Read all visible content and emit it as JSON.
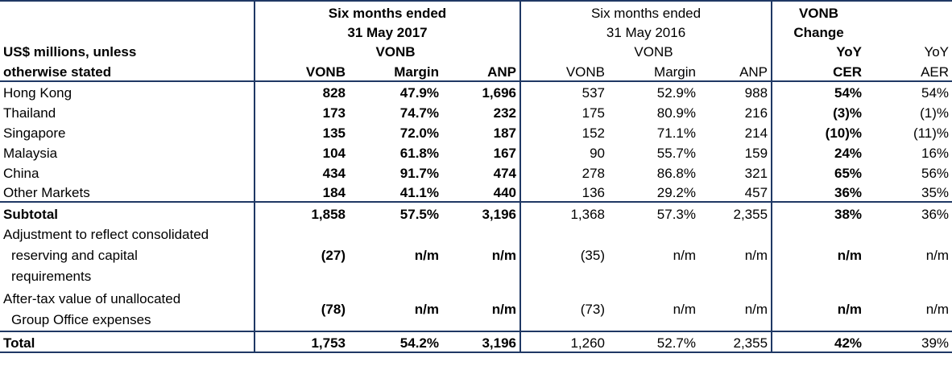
{
  "header": {
    "unit_label_line1": "US$ millions, unless",
    "unit_label_line2": "otherwise stated",
    "group2017_line1": "Six months ended",
    "group2017_line2": "31 May 2017",
    "group2017_vonb_top": "VONB",
    "group2016_line1": "Six months ended",
    "group2016_line2": "31 May 2016",
    "group2016_vonb_top": "VONB",
    "change_line1": "VONB",
    "change_line2": "Change",
    "col_vonb": "VONB",
    "col_margin": "Margin",
    "col_anp": "ANP",
    "col_yoy_cer_top": "YoY",
    "col_yoy_cer_bottom": "CER",
    "col_yoy_aer_top": "YoY",
    "col_yoy_aer_bottom": "AER"
  },
  "rows": [
    {
      "label": "Hong Kong",
      "vonb17": "828",
      "margin17": "47.9%",
      "anp17": "1,696",
      "vonb16": "537",
      "margin16": "52.9%",
      "anp16": "988",
      "cer": "54%",
      "aer": "54%"
    },
    {
      "label": "Thailand",
      "vonb17": "173",
      "margin17": "74.7%",
      "anp17": "232",
      "vonb16": "175",
      "margin16": "80.9%",
      "anp16": "216",
      "cer": "(3)%",
      "aer": "(1)%"
    },
    {
      "label": "Singapore",
      "vonb17": "135",
      "margin17": "72.0%",
      "anp17": "187",
      "vonb16": "152",
      "margin16": "71.1%",
      "anp16": "214",
      "cer": "(10)%",
      "aer": "(11)%"
    },
    {
      "label": "Malaysia",
      "vonb17": "104",
      "margin17": "61.8%",
      "anp17": "167",
      "vonb16": "90",
      "margin16": "55.7%",
      "anp16": "159",
      "cer": "24%",
      "aer": "16%"
    },
    {
      "label": "China",
      "vonb17": "434",
      "margin17": "91.7%",
      "anp17": "474",
      "vonb16": "278",
      "margin16": "86.8%",
      "anp16": "321",
      "cer": "65%",
      "aer": "56%"
    },
    {
      "label": "Other Markets",
      "vonb17": "184",
      "margin17": "41.1%",
      "anp17": "440",
      "vonb16": "136",
      "margin16": "29.2%",
      "anp16": "457",
      "cer": "36%",
      "aer": "35%"
    }
  ],
  "subtotal": {
    "label": "Subtotal",
    "vonb17": "1,858",
    "margin17": "57.5%",
    "anp17": "3,196",
    "vonb16": "1,368",
    "margin16": "57.3%",
    "anp16": "2,355",
    "cer": "38%",
    "aer": "36%"
  },
  "adjustment": {
    "label_line1": "Adjustment to reflect consolidated",
    "label_line2": "reserving and capital",
    "label_line3": "requirements",
    "vonb17": "(27)",
    "margin17": "n/m",
    "anp17": "n/m",
    "vonb16": "(35)",
    "margin16": "n/m",
    "anp16": "n/m",
    "cer": "n/m",
    "aer": "n/m"
  },
  "group_office": {
    "label_line1": "After-tax value of unallocated",
    "label_line2": "Group Office expenses",
    "vonb17": "(78)",
    "margin17": "n/m",
    "anp17": "n/m",
    "vonb16": "(73)",
    "margin16": "n/m",
    "anp16": "n/m",
    "cer": "n/m",
    "aer": "n/m"
  },
  "total": {
    "label": "Total",
    "vonb17": "1,753",
    "margin17": "54.2%",
    "anp17": "3,196",
    "vonb16": "1,260",
    "margin16": "52.7%",
    "anp16": "2,355",
    "cer": "42%",
    "aer": "39%"
  }
}
